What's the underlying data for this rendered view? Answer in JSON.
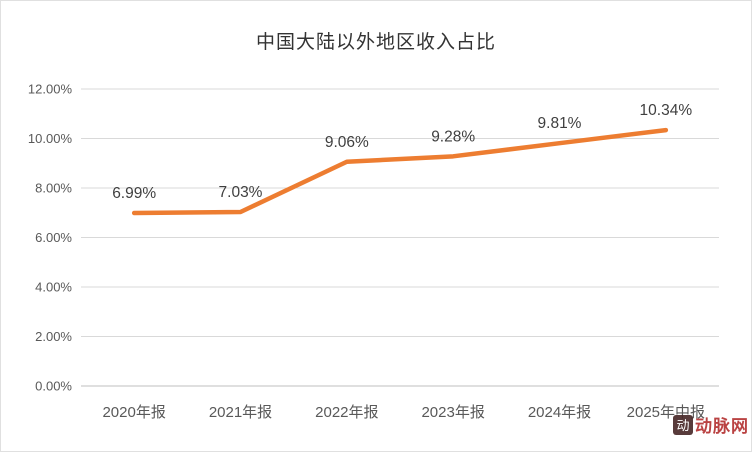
{
  "chart_data": {
    "type": "line",
    "title": "中国大陆以外地区收入占比",
    "categories": [
      "2020年报",
      "2021年报",
      "2022年报",
      "2023年报",
      "2024年报",
      "2025年中报"
    ],
    "values": [
      6.99,
      7.03,
      9.06,
      9.28,
      9.81,
      10.34
    ],
    "value_labels": [
      "6.99%",
      "7.03%",
      "9.06%",
      "9.28%",
      "9.81%",
      "10.34%"
    ],
    "ylim": [
      0,
      12
    ],
    "ytick_step": 2,
    "ytick_labels": [
      "0.00%",
      "2.00%",
      "4.00%",
      "6.00%",
      "8.00%",
      "10.00%",
      "12.00%"
    ],
    "grid": true,
    "legend_position": "none",
    "line_color": "#ED7D31",
    "grid_color": "#D9D9D9",
    "axis_line_color": "#BFBFBF",
    "tick_label_color": "#595959",
    "data_label_color": "#3f3f3f",
    "xlabel": "",
    "ylabel": ""
  },
  "watermark": {
    "icon_glyph": "动",
    "text": "动脉网"
  }
}
